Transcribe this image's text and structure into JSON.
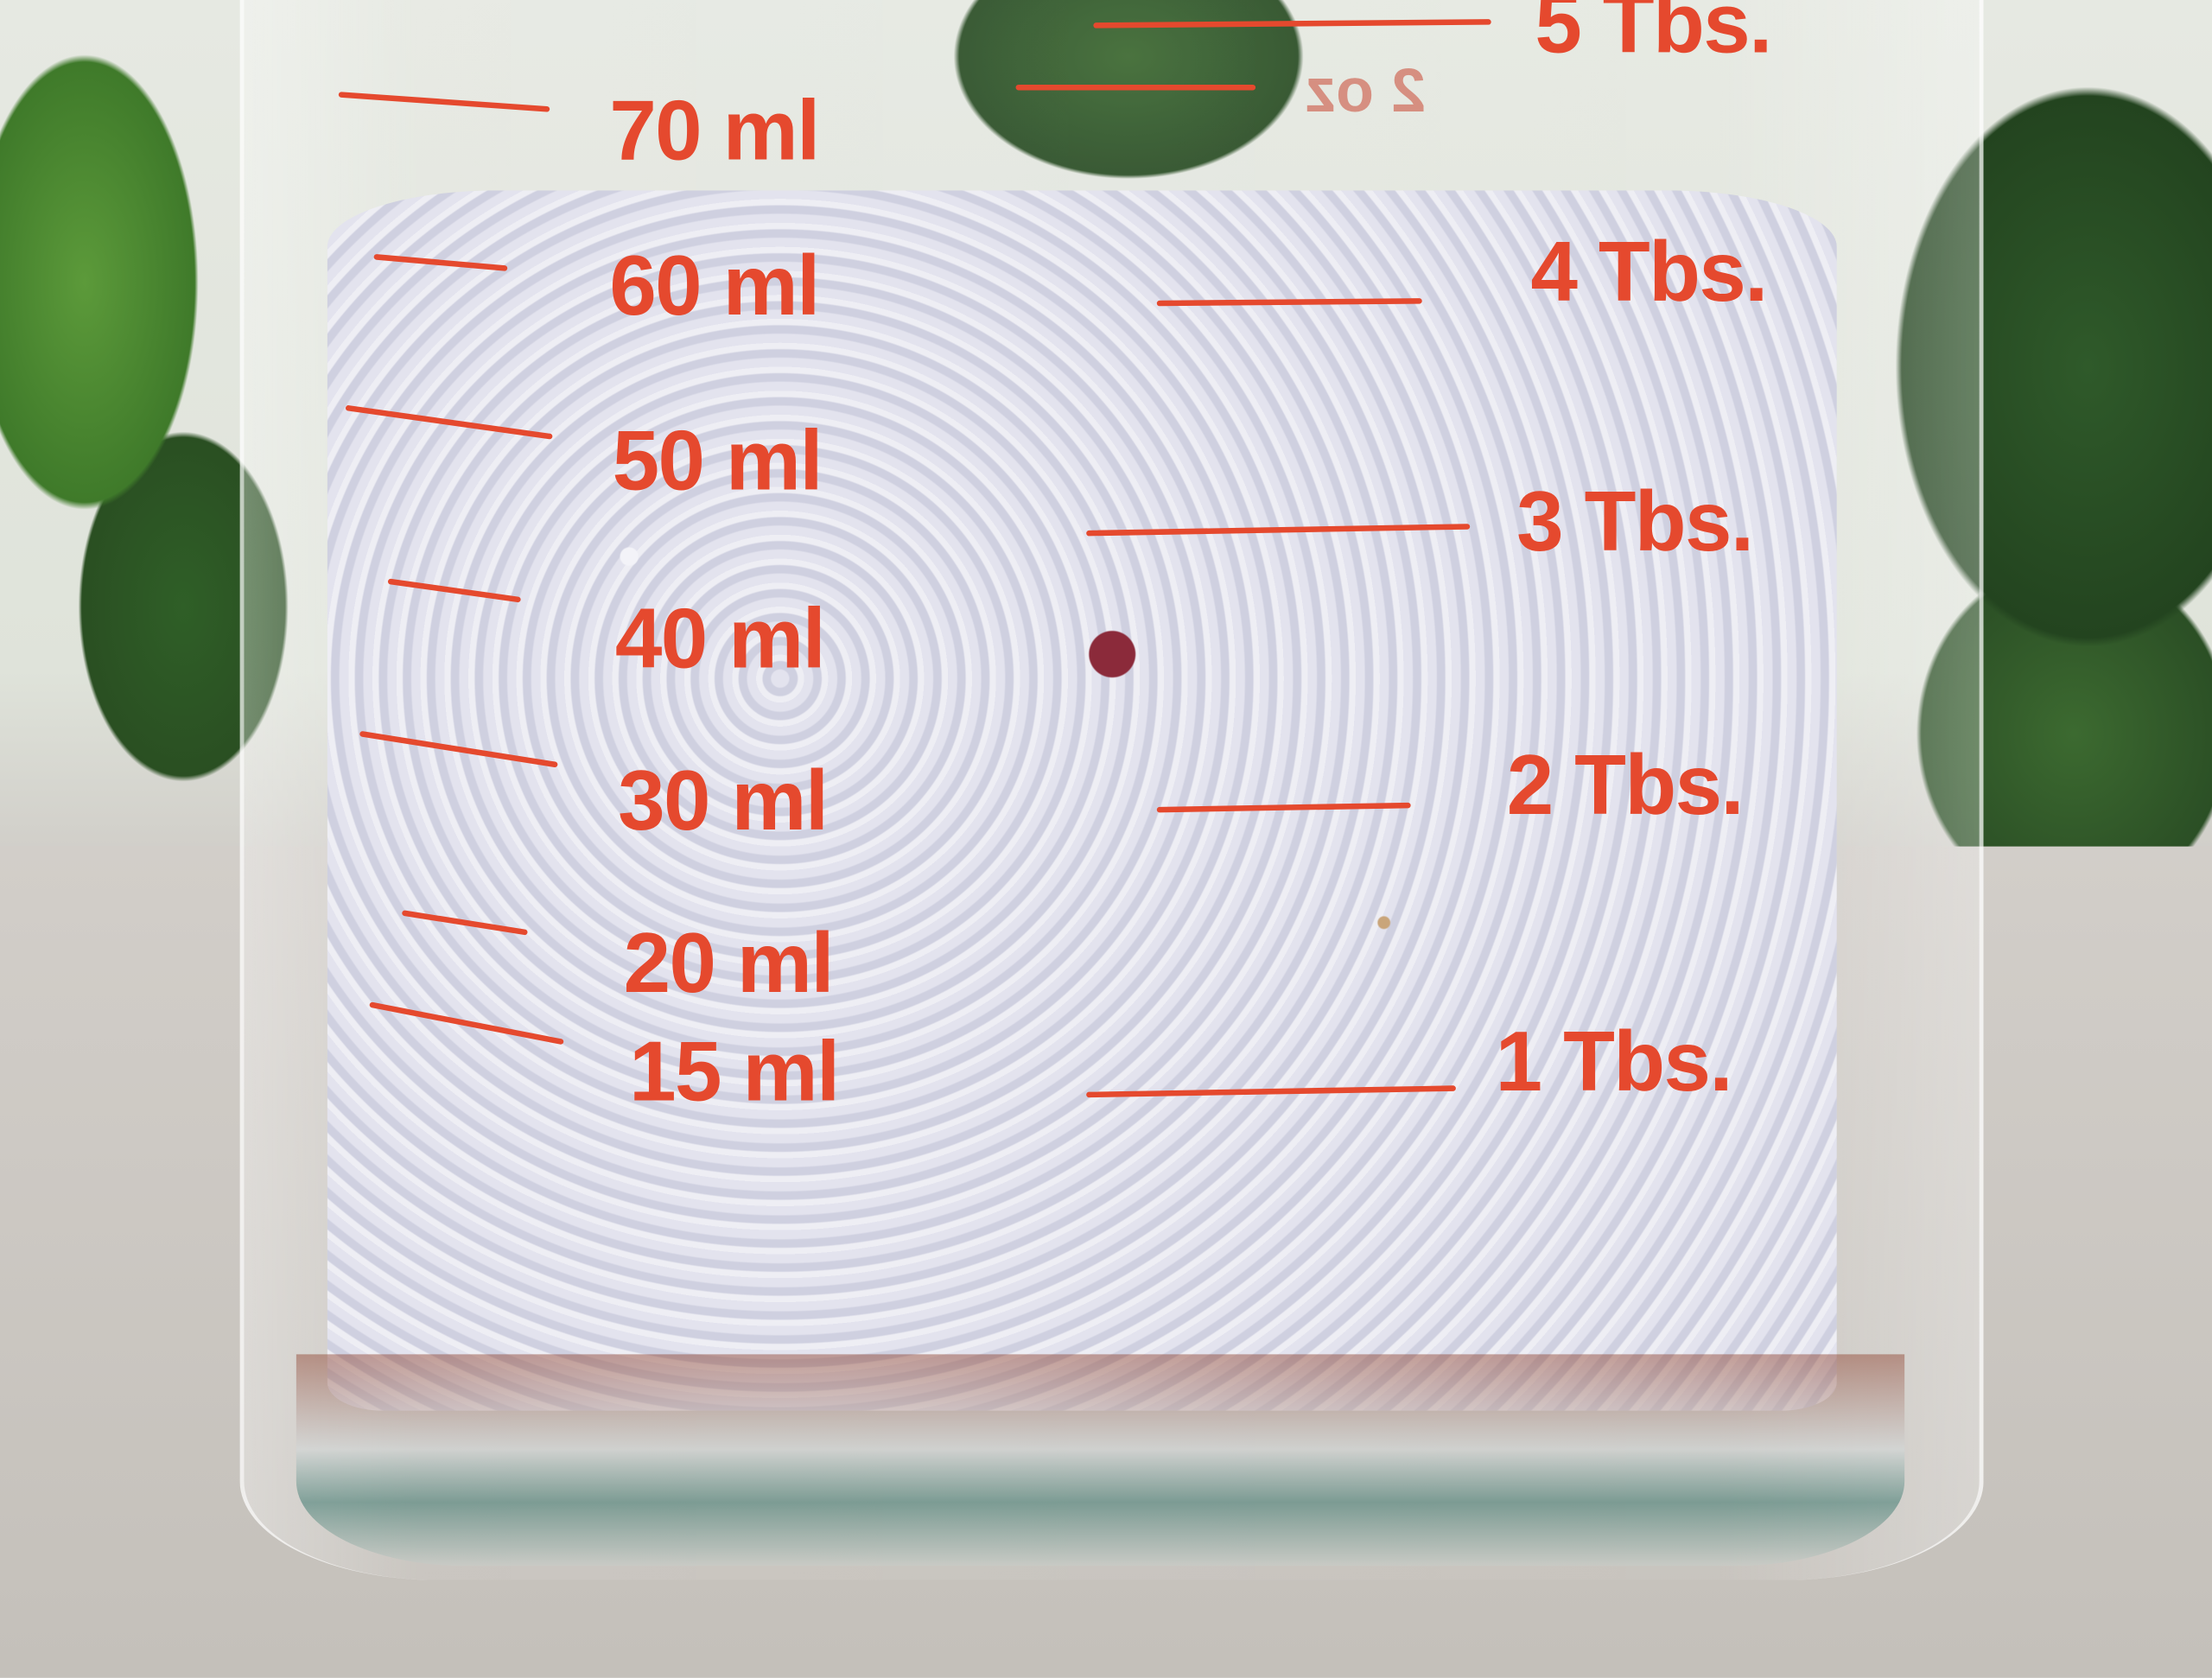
{
  "image": {
    "subject": "measuring-glass-with-crushed-stone",
    "ml_marks": [
      "70 ml",
      "60 ml",
      "50 ml",
      "40 ml",
      "30 ml",
      "20 ml",
      "15 ml"
    ],
    "tbs_marks": [
      "5 Tbs.",
      "4 Tbs.",
      "3 Tbs.",
      "2 Tbs.",
      "1 Tbs."
    ],
    "oz_mark": "2 oz",
    "colors": {
      "marking": "#e5492e",
      "stone": "#dcdce8",
      "leaves": "#2f5a2a",
      "surface": "#c9c6c1"
    }
  }
}
